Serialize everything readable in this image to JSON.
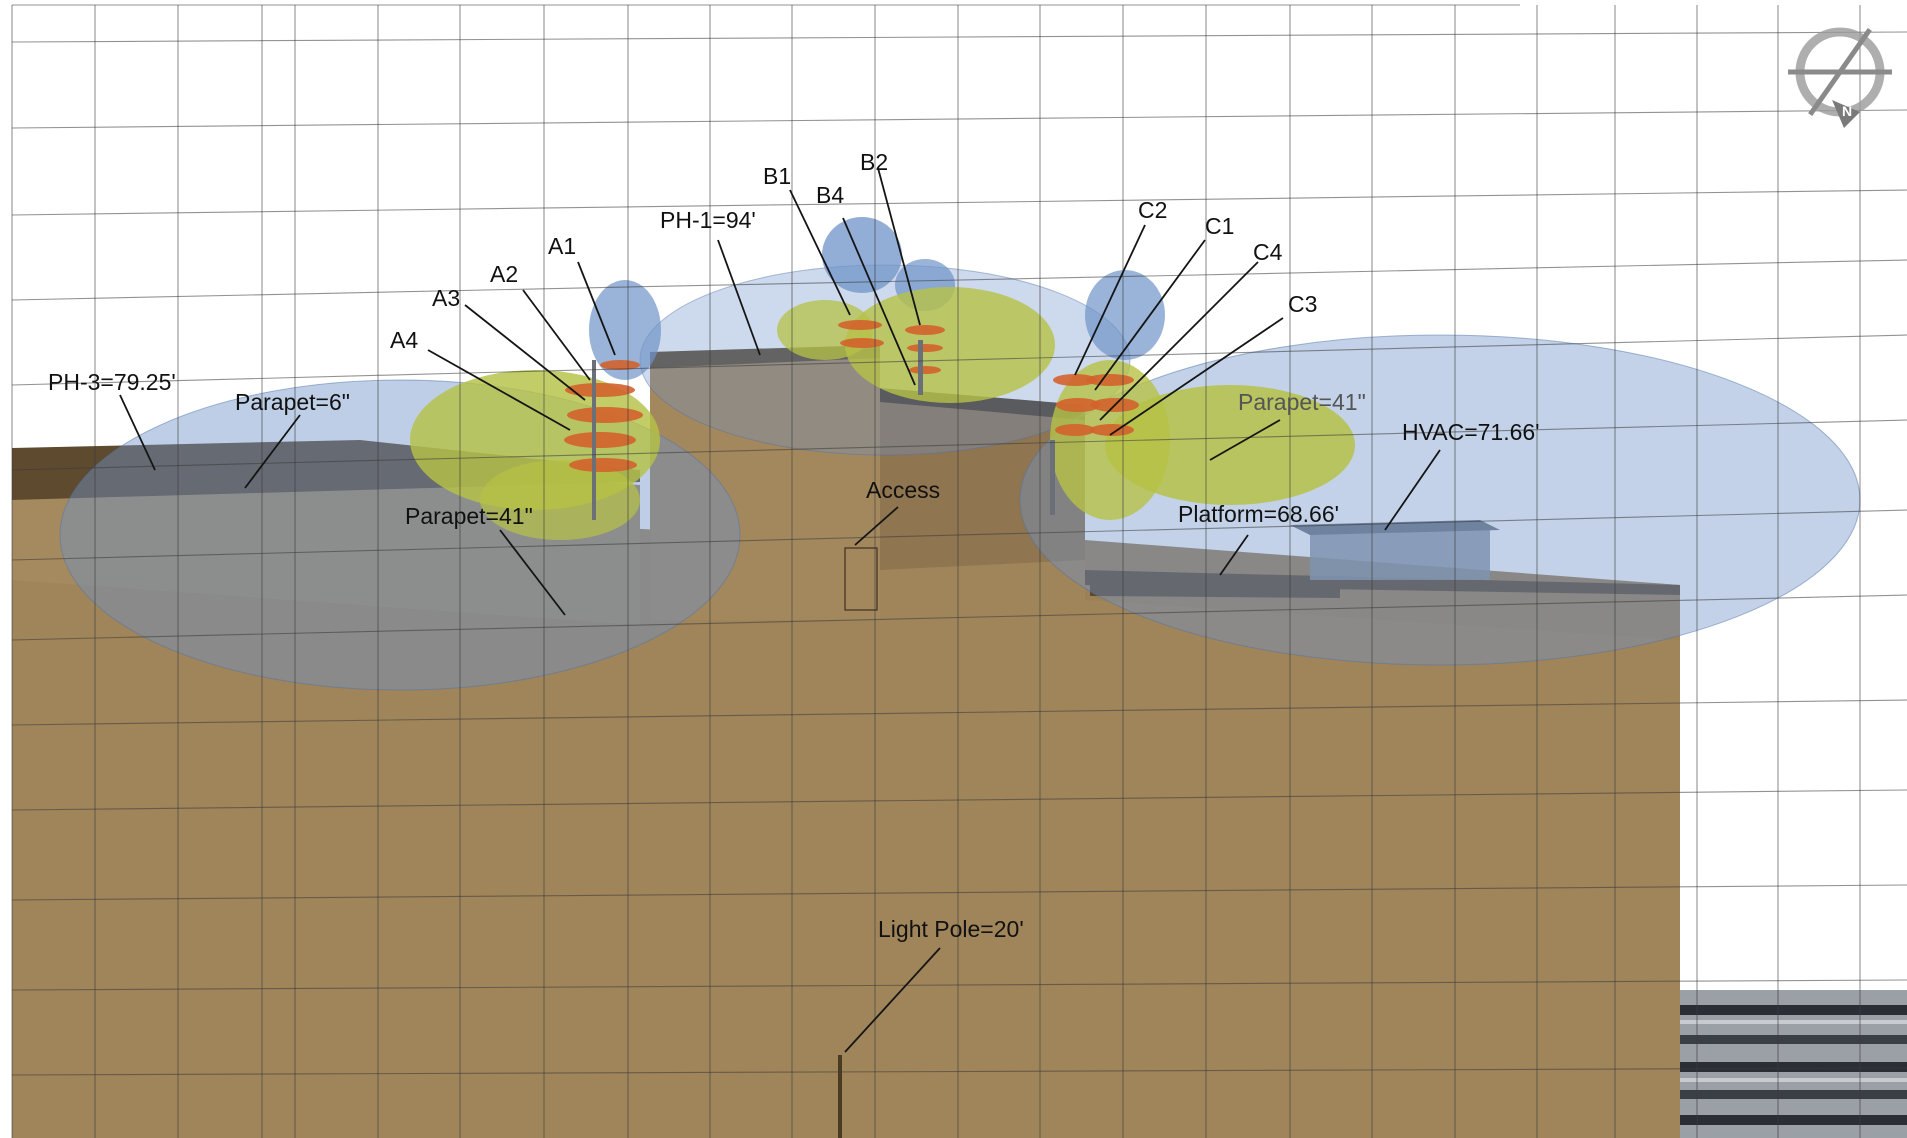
{
  "colors": {
    "building": "#a0845a",
    "roof_dark": "#5e4a2f",
    "coverage_blue": "#6f93c8",
    "lobe_green": "#b6c246",
    "element_orange": "#d3622c"
  },
  "compass": {
    "icon": "compass-north-icon",
    "letter": "N"
  },
  "labels": {
    "ph3": "PH-3=79.25'",
    "parapet_6": "Parapet=6\"",
    "parapet_41_left": "Parapet=41\"",
    "parapet_41_right": "Parapet=41\"",
    "ph1": "PH-1=94'",
    "access": "Access",
    "hvac": "HVAC=71.66'",
    "platform": "Platform=68.66'",
    "light_pole": "Light Pole=20'",
    "a1": "A1",
    "a2": "A2",
    "a3": "A3",
    "a4": "A4",
    "b1": "B1",
    "b2": "B2",
    "b4": "B4",
    "c1": "C1",
    "c2": "C2",
    "c3": "C3",
    "c4": "C4"
  }
}
